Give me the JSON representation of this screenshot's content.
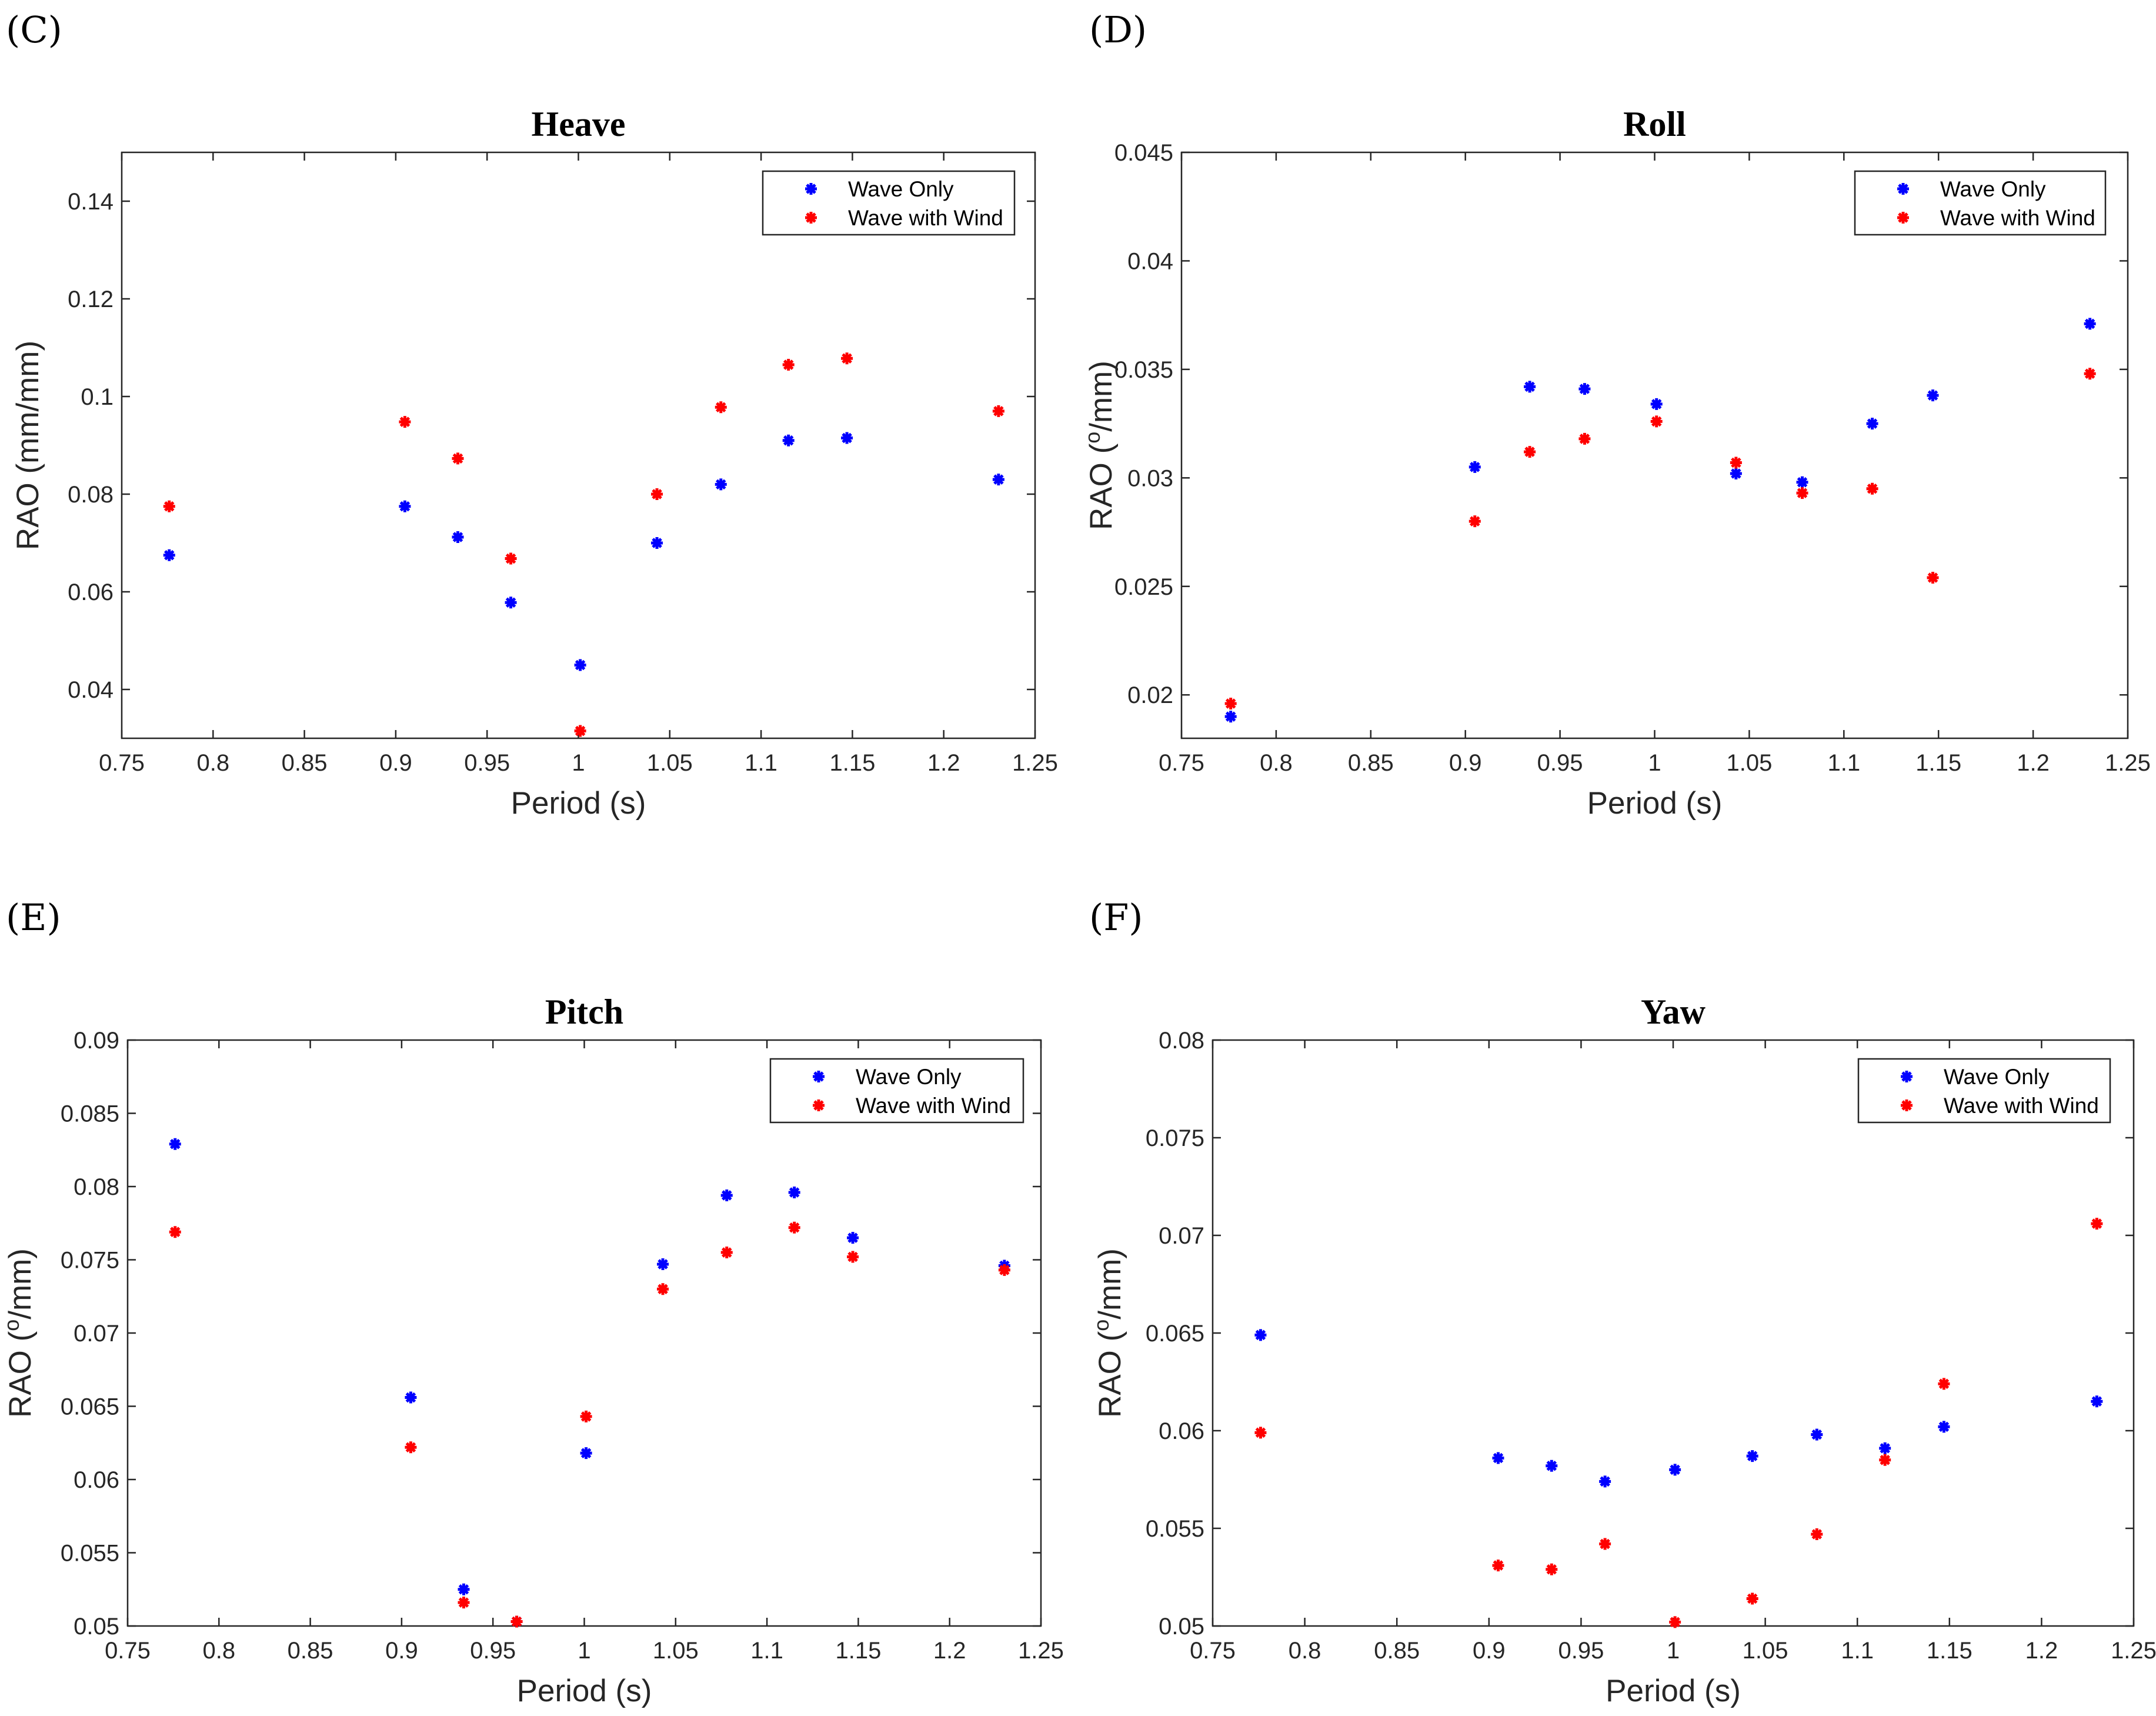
{
  "chart_data": [
    {
      "panel": "(C)",
      "type": "scatter",
      "title": "Heave",
      "xlabel": "Period (s)",
      "ylabel": "RAO (mm/mm)",
      "xlim": [
        0.75,
        1.25
      ],
      "ylim": [
        0.03,
        0.15
      ],
      "xticks": [
        "0.75",
        "0.8",
        "0.85",
        "0.9",
        "0.95",
        "1",
        "1.05",
        "1.1",
        "1.15",
        "1.2",
        "1.25"
      ],
      "yticks": [
        "0.04",
        "0.06",
        "0.08",
        "0.1",
        "0.12",
        "0.14"
      ],
      "ytick_values": [
        0.04,
        0.06,
        0.08,
        0.1,
        0.12,
        0.14
      ],
      "legend_position": "top-right",
      "x": [
        0.776,
        0.905,
        0.934,
        0.963,
        1.001,
        1.043,
        1.078,
        1.115,
        1.147,
        1.23
      ],
      "series": [
        {
          "name": "Wave Only",
          "color": "#0000ff",
          "values": [
            0.0675,
            0.0775,
            0.0712,
            0.0578,
            0.045,
            0.07,
            0.082,
            0.091,
            0.0915,
            0.083
          ]
        },
        {
          "name": "Wave with Wind",
          "color": "#ff0000",
          "values": [
            0.0775,
            0.0948,
            0.0873,
            0.0668,
            0.0315,
            0.08,
            0.0978,
            0.1065,
            0.1078,
            0.097
          ]
        }
      ]
    },
    {
      "panel": "(D)",
      "type": "scatter",
      "title": "Roll",
      "xlabel": "Period (s)",
      "ylabel": "RAO (",
      "ylabel_sup": "o",
      "ylabel_suffix": "/mm)",
      "xlim": [
        0.75,
        1.25
      ],
      "ylim": [
        0.018,
        0.045
      ],
      "xticks": [
        "0.75",
        "0.8",
        "0.85",
        "0.9",
        "0.95",
        "1",
        "1.05",
        "1.1",
        "1.15",
        "1.2",
        "1.25"
      ],
      "yticks": [
        "0.02",
        "0.025",
        "0.03",
        "0.035",
        "0.04",
        "0.045"
      ],
      "ytick_values": [
        0.02,
        0.025,
        0.03,
        0.035,
        0.04,
        0.045
      ],
      "legend_position": "top-right",
      "x": [
        0.776,
        0.905,
        0.934,
        0.963,
        1.001,
        1.043,
        1.078,
        1.115,
        1.147,
        1.23
      ],
      "series": [
        {
          "name": "Wave Only",
          "color": "#0000ff",
          "values": [
            0.019,
            0.0305,
            0.0342,
            0.0341,
            0.0334,
            0.0302,
            0.0298,
            0.0325,
            0.0338,
            0.0371
          ]
        },
        {
          "name": "Wave with Wind",
          "color": "#ff0000",
          "values": [
            0.0196,
            0.028,
            0.0312,
            0.0318,
            0.0326,
            0.0307,
            0.0293,
            0.0295,
            0.0254,
            0.0348
          ]
        }
      ]
    },
    {
      "panel": "(E)",
      "type": "scatter",
      "title": "Pitch",
      "xlabel": "Period (s)",
      "ylabel": "RAO (",
      "ylabel_sup": "o",
      "ylabel_suffix": "/mm)",
      "xlim": [
        0.75,
        1.25
      ],
      "ylim": [
        0.05,
        0.09
      ],
      "xticks": [
        "0.75",
        "0.8",
        "0.85",
        "0.9",
        "0.95",
        "1",
        "1.05",
        "1.1",
        "1.15",
        "1.2",
        "1.25"
      ],
      "yticks": [
        "0.05",
        "0.055",
        "0.06",
        "0.065",
        "0.07",
        "0.075",
        "0.08",
        "0.085",
        "0.09"
      ],
      "ytick_values": [
        0.05,
        0.055,
        0.06,
        0.065,
        0.07,
        0.075,
        0.08,
        0.085,
        0.09
      ],
      "legend_position": "top-right",
      "x": [
        0.776,
        0.905,
        0.934,
        0.963,
        1.001,
        1.043,
        1.078,
        1.115,
        1.147,
        1.23
      ],
      "series": [
        {
          "name": "Wave Only",
          "color": "#0000ff",
          "values": [
            0.0829,
            0.0656,
            0.0525,
            0.0503,
            0.0618,
            0.0747,
            0.0794,
            0.0796,
            0.0765,
            0.0746
          ]
        },
        {
          "name": "Wave with Wind",
          "color": "#ff0000",
          "values": [
            0.0769,
            0.0622,
            0.0516,
            0.0503,
            0.0643,
            0.073,
            0.0755,
            0.0772,
            0.0752,
            0.0743
          ]
        }
      ]
    },
    {
      "panel": "(F)",
      "type": "scatter",
      "title": "Yaw",
      "xlabel": "Period (s)",
      "ylabel": "RAO (",
      "ylabel_sup": "o",
      "ylabel_suffix": "/mm)",
      "xlim": [
        0.75,
        1.25
      ],
      "ylim": [
        0.05,
        0.08
      ],
      "xticks": [
        "0.75",
        "0.8",
        "0.85",
        "0.9",
        "0.95",
        "1",
        "1.05",
        "1.1",
        "1.15",
        "1.2",
        "1.25"
      ],
      "yticks": [
        "0.05",
        "0.055",
        "0.06",
        "0.065",
        "0.07",
        "0.075",
        "0.08"
      ],
      "ytick_values": [
        0.05,
        0.055,
        0.06,
        0.065,
        0.07,
        0.075,
        0.08
      ],
      "legend_position": "top-right",
      "x": [
        0.776,
        0.905,
        0.934,
        0.963,
        1.001,
        1.043,
        1.078,
        1.115,
        1.147,
        1.23
      ],
      "series": [
        {
          "name": "Wave Only",
          "color": "#0000ff",
          "values": [
            0.0649,
            0.0586,
            0.0582,
            0.0574,
            0.058,
            0.0587,
            0.0598,
            0.0591,
            0.0602,
            0.0615
          ]
        },
        {
          "name": "Wave with Wind",
          "color": "#ff0000",
          "values": [
            0.0599,
            0.0531,
            0.0529,
            0.0542,
            0.0502,
            0.0514,
            0.0547,
            0.0585,
            0.0624,
            0.0706
          ]
        }
      ]
    }
  ]
}
